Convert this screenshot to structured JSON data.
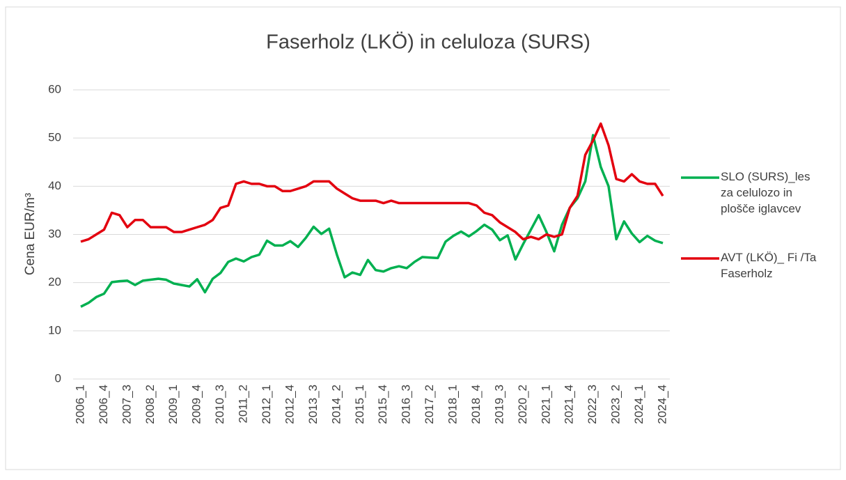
{
  "chart_data": {
    "type": "line",
    "title": "Faserholz (LKÖ) in celuloza (SURS)",
    "y_label": "Cena EUR/m³",
    "categories": [
      "2006_1",
      null,
      null,
      "2006_4",
      null,
      null,
      "2007_3",
      null,
      null,
      "2008_2",
      null,
      null,
      "2009_1",
      null,
      null,
      "2009_4",
      null,
      null,
      "2010_3",
      null,
      null,
      "2011_2",
      null,
      null,
      "2012_1",
      null,
      null,
      "2012_4",
      null,
      null,
      "2013_3",
      null,
      null,
      "2014_2",
      null,
      null,
      "2015_1",
      null,
      null,
      "2015_4",
      null,
      null,
      "2016_3",
      null,
      null,
      "2017_2",
      null,
      null,
      "2018_1",
      null,
      null,
      "2018_4",
      null,
      null,
      "2019_3",
      null,
      null,
      "2020_2",
      null,
      null,
      "2021_1",
      null,
      null,
      "2021_4",
      null,
      null,
      "2022_3",
      null,
      null,
      "2023_2",
      null,
      null,
      "2024_1",
      null,
      null,
      "2024_4"
    ],
    "series": [
      {
        "name": "SLO (SURS)_les za celulozo in plošče iglavcev",
        "color": "#00b050",
        "values": [
          15,
          15.8,
          17,
          17.7,
          20.1,
          20.3,
          20.4,
          19.5,
          20.4,
          20.6,
          20.8,
          20.6,
          19.8,
          19.5,
          19.2,
          20.7,
          18,
          20.8,
          22,
          24.3,
          25,
          24.4,
          25.3,
          25.8,
          28.7,
          27.7,
          27.7,
          28.6,
          27.4,
          29.3,
          31.6,
          30.1,
          31.2,
          25.8,
          21.1,
          22.1,
          21.6,
          24.7,
          22.6,
          22.3,
          23,
          23.4,
          23,
          24.3,
          25.3,
          25.2,
          25.1,
          28.5,
          29.7,
          30.6,
          29.6,
          30.7,
          32,
          31,
          28.8,
          29.8,
          24.8,
          28,
          31,
          34,
          30.5,
          26.5,
          32,
          35.5,
          37.5,
          41,
          50.6,
          44,
          40,
          29,
          32.7,
          30.2,
          28.4,
          29.7,
          28.7,
          28.2
        ]
      },
      {
        "name": "AVT (LKÖ)_ Fi /Ta Faserholz",
        "color": "#e3000f",
        "values": [
          28.5,
          29,
          30,
          31,
          34.5,
          34,
          31.5,
          33,
          33,
          31.5,
          31.5,
          31.5,
          30.5,
          30.5,
          31,
          31.5,
          32,
          33,
          35.5,
          36,
          40.5,
          41,
          40.5,
          40.5,
          40,
          40,
          39,
          39,
          39.5,
          40,
          41,
          41,
          41,
          39.5,
          38.5,
          37.5,
          37,
          37,
          37,
          36.5,
          37,
          36.5,
          36.5,
          36.5,
          36.5,
          36.5,
          36.5,
          36.5,
          36.5,
          36.5,
          36.5,
          36,
          34.5,
          34,
          32.5,
          31.5,
          30.5,
          29,
          29.5,
          29,
          30,
          29.5,
          30,
          35.5,
          38,
          46.5,
          49.5,
          53,
          48.5,
          41.5,
          41,
          42.5,
          41,
          40.5,
          40.5,
          38
        ]
      }
    ],
    "ylim": [
      0,
      60
    ],
    "yticks": [
      0,
      10,
      20,
      30,
      40,
      50,
      60
    ],
    "grid": true,
    "legend": "right"
  }
}
